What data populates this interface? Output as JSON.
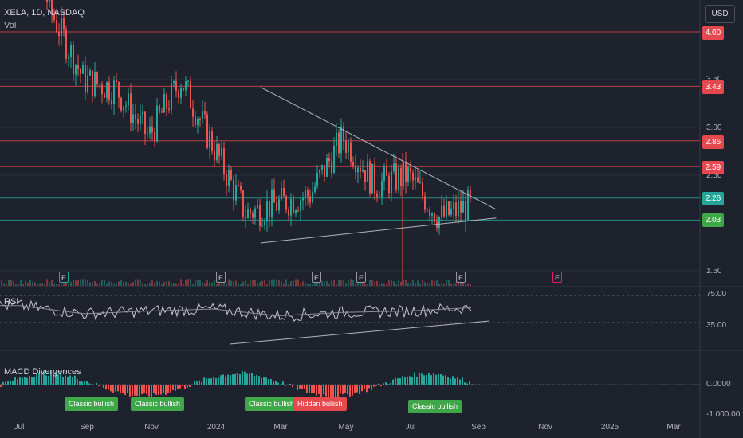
{
  "chart_header": {
    "symbol_line": "XELA, 1D, NASDAQ",
    "volume_label": "Vol"
  },
  "currency_button": "USD",
  "price_axis": {
    "ticks": [
      "3.50",
      "3.00",
      "2.50",
      "1.50"
    ],
    "level_tags": [
      {
        "value": "4.00",
        "color": "#e5484d"
      },
      {
        "value": "3.43",
        "color": "#e5484d"
      },
      {
        "value": "2.86",
        "color": "#e5484d"
      },
      {
        "value": "2.59",
        "color": "#e5484d"
      },
      {
        "value": "2.26",
        "color": "#26a69a"
      },
      {
        "value": "2.03",
        "color": "#3fa64a"
      }
    ]
  },
  "earnings_markers": [
    {
      "label": "E",
      "color": "#26a69a"
    },
    {
      "label": "E",
      "color": "#9598a1"
    },
    {
      "label": "E",
      "color": "#9598a1"
    },
    {
      "label": "E",
      "color": "#9598a1"
    },
    {
      "label": "E",
      "color": "#9598a1"
    },
    {
      "label": "E",
      "color": "#e91e63"
    }
  ],
  "rsi_panel": {
    "label": "RSI",
    "ticks": [
      "75.00",
      "35.00"
    ]
  },
  "macd_panel": {
    "label": "MACD Divergences",
    "ticks": [
      "0.0000",
      "-1.000.00"
    ],
    "badges": [
      {
        "text": "Classic bullish",
        "color": "#3fa64a"
      },
      {
        "text": "Classic bullish",
        "color": "#3fa64a"
      },
      {
        "text": "Classic bullish",
        "color": "#3fa64a"
      },
      {
        "text": "Hidden bullish",
        "color": "#e5484d"
      },
      {
        "text": "Classic bullish",
        "color": "#3fa64a"
      }
    ]
  },
  "time_axis": [
    "Jul",
    "Sep",
    "Nov",
    "2024",
    "Mar",
    "May",
    "Jul",
    "Sep",
    "Nov",
    "2025",
    "Mar"
  ],
  "colors": {
    "up": "#26a69a",
    "down": "#ef5350",
    "resistance": "#e5484d",
    "support": "#26a69a",
    "trendline": "#b2b5be"
  },
  "chart_data": [
    {
      "type": "candlestick",
      "title": "XELA, 1D, NASDAQ",
      "y_ticks": [
        3.5,
        3.0,
        2.5,
        1.5
      ],
      "horizontal_levels": [
        4.0,
        3.43,
        2.86,
        2.59,
        2.26,
        2.03
      ],
      "close_series": [
        {
          "x": "2023-07",
          "y": 5.2
        },
        {
          "x": "2023-08",
          "y": 4.2
        },
        {
          "x": "2023-09",
          "y": 3.5
        },
        {
          "x": "2023-10",
          "y": 3.4
        },
        {
          "x": "2023-11",
          "y": 2.9
        },
        {
          "x": "2023-12",
          "y": 3.5
        },
        {
          "x": "2024-01",
          "y": 2.8
        },
        {
          "x": "2024-02",
          "y": 2.1
        },
        {
          "x": "2024-03",
          "y": 2.2
        },
        {
          "x": "2024-04",
          "y": 2.3
        },
        {
          "x": "2024-05",
          "y": 2.9
        },
        {
          "x": "2024-06",
          "y": 2.4
        },
        {
          "x": "2024-07",
          "y": 2.5
        },
        {
          "x": "2024-08",
          "y": 2.05
        },
        {
          "x": "2024-09",
          "y": 2.2
        }
      ],
      "triangle_upper": [
        {
          "x": "2024-03",
          "y": 3.43
        },
        {
          "x": "2024-09",
          "y": 2.15
        }
      ],
      "triangle_lower": [
        {
          "x": "2024-03",
          "y": 1.8
        },
        {
          "x": "2024-09",
          "y": 2.06
        }
      ]
    },
    {
      "type": "line",
      "title": "RSI",
      "y_ticks": [
        75,
        35
      ],
      "x": [
        "2023-07",
        "2023-09",
        "2023-11",
        "2024-01",
        "2024-03",
        "2024-05",
        "2024-07",
        "2024-09"
      ],
      "series": [
        {
          "values": [
            60,
            48,
            52,
            55,
            45,
            50,
            52,
            57
          ]
        }
      ]
    },
    {
      "type": "bar",
      "title": "MACD Divergences",
      "y_ticks": [
        0,
        -1000
      ],
      "x": [
        "2023-07",
        "2023-09",
        "2023-11",
        "2024-01",
        "2024-03",
        "2024-05",
        "2024-07",
        "2024-09"
      ]
    }
  ]
}
